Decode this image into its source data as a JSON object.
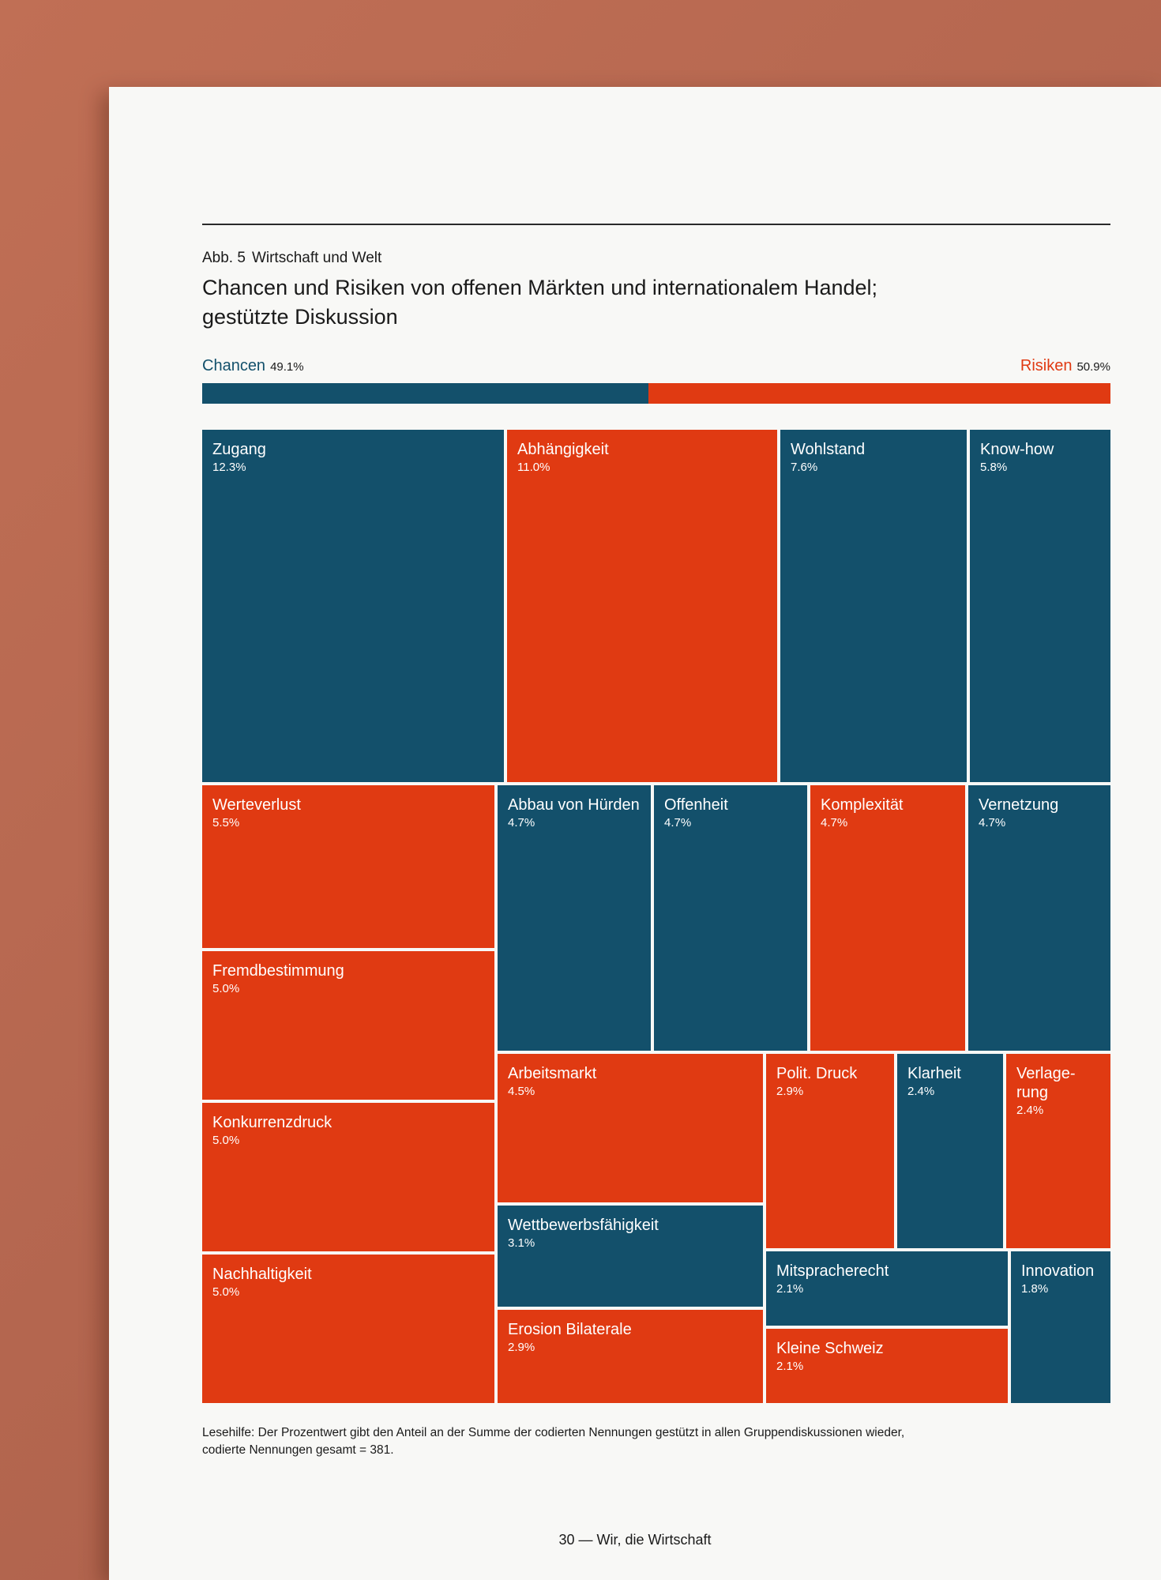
{
  "colors": {
    "chancen": "#13506b",
    "risiken": "#e03a12"
  },
  "figure": {
    "label_num": "Abb. 5",
    "label_text": "Wirtschaft und Welt",
    "title_line1": "Chancen und Risiken von offenen Märkten und internationalem Handel;",
    "title_line2": "gestützte Diskussion"
  },
  "share": {
    "left_label": "Chancen",
    "left_pct": "49.1%",
    "left_value": 49.1,
    "right_label": "Risiken",
    "right_pct": "50.9%",
    "right_value": 50.9
  },
  "chart_data": {
    "type": "treemap",
    "title": "Chancen und Risiken von offenen Märkten und internationalem Handel; gestützte Diskussion",
    "unit": "% der codierten Nennungen",
    "categories": [
      "Chancen",
      "Risiken"
    ],
    "items": [
      {
        "label": "Zugang",
        "value": 12.3,
        "display": "12.3%",
        "category": "Chancen"
      },
      {
        "label": "Abhängigkeit",
        "value": 11.0,
        "display": "11.0%",
        "category": "Risiken"
      },
      {
        "label": "Wohlstand",
        "value": 7.6,
        "display": "7.6%",
        "category": "Chancen"
      },
      {
        "label": "Know-how",
        "value": 5.8,
        "display": "5.8%",
        "category": "Chancen"
      },
      {
        "label": "Werteverlust",
        "value": 5.5,
        "display": "5.5%",
        "category": "Risiken"
      },
      {
        "label": "Abbau von Hürden",
        "value": 4.7,
        "display": "4.7%",
        "category": "Chancen"
      },
      {
        "label": "Offenheit",
        "value": 4.7,
        "display": "4.7%",
        "category": "Chancen"
      },
      {
        "label": "Komplexität",
        "value": 4.7,
        "display": "4.7%",
        "category": "Risiken"
      },
      {
        "label": "Vernetzung",
        "value": 4.7,
        "display": "4.7%",
        "category": "Chancen"
      },
      {
        "label": "Fremdbestimmung",
        "value": 5.0,
        "display": "5.0%",
        "category": "Risiken"
      },
      {
        "label": "Konkurrenzdruck",
        "value": 5.0,
        "display": "5.0%",
        "category": "Risiken"
      },
      {
        "label": "Nachhaltigkeit",
        "value": 5.0,
        "display": "5.0%",
        "category": "Risiken"
      },
      {
        "label": "Arbeitsmarkt",
        "value": 4.5,
        "display": "4.5%",
        "category": "Risiken"
      },
      {
        "label": "Wettbewerbsfähigkeit",
        "value": 3.1,
        "display": "3.1%",
        "category": "Chancen"
      },
      {
        "label": "Erosion Bilaterale",
        "value": 2.9,
        "display": "2.9%",
        "category": "Risiken"
      },
      {
        "label": "Polit. Druck",
        "value": 2.9,
        "display": "2.9%",
        "category": "Risiken"
      },
      {
        "label": "Klarheit",
        "value": 2.4,
        "display": "2.4%",
        "category": "Chancen"
      },
      {
        "label": "Verlage-rung",
        "value": 2.4,
        "display": "2.4%",
        "category": "Risiken"
      },
      {
        "label": "Mitspracherecht",
        "value": 2.1,
        "display": "2.1%",
        "category": "Chancen"
      },
      {
        "label": "Innovation",
        "value": 1.8,
        "display": "1.8%",
        "category": "Chancen"
      },
      {
        "label": "Kleine Schweiz",
        "value": 2.1,
        "display": "2.1%",
        "category": "Risiken"
      }
    ]
  },
  "note": {
    "line1": "Lesehilfe: Der Prozentwert gibt den Anteil an der Summe der codierten Nennungen gestützt in allen Gruppendiskussionen wieder,",
    "line2": "codierte Nennungen gesamt = 381."
  },
  "footer": {
    "page": "30 — Wir, die Wirtschaft"
  }
}
